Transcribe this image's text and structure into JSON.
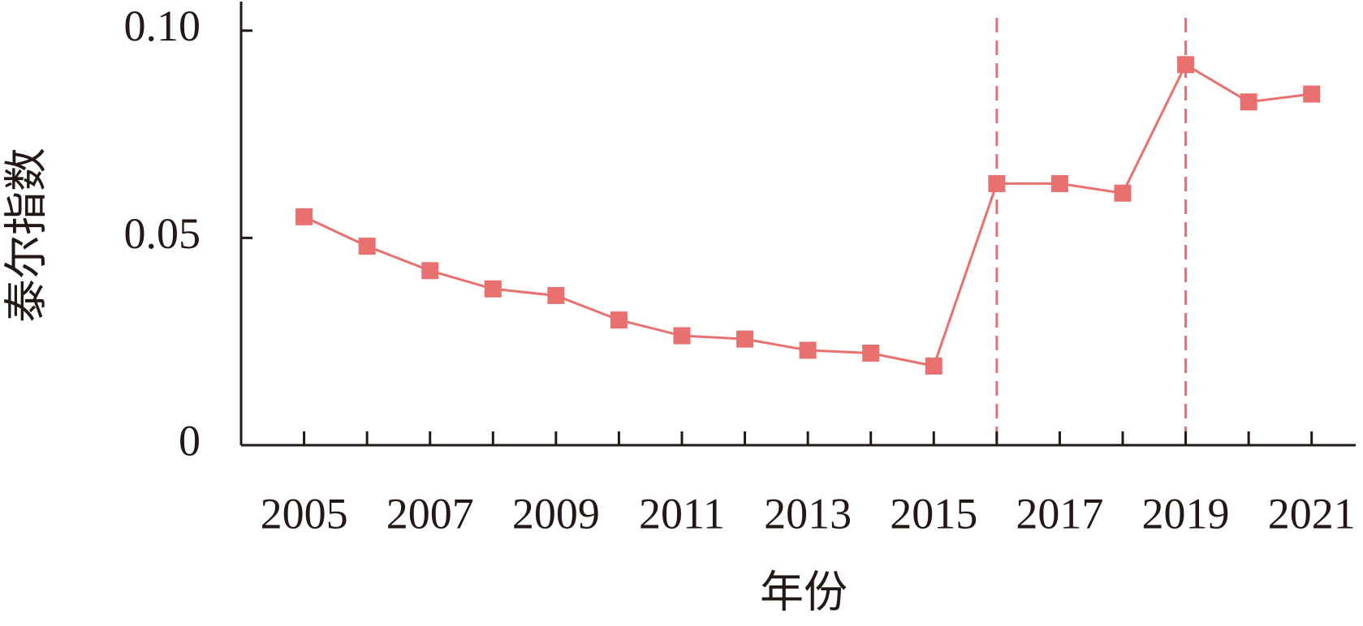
{
  "chart_data": {
    "type": "line",
    "x_label": "年份",
    "y_label": "泰尔指数",
    "x": [
      2005,
      2006,
      2007,
      2008,
      2009,
      2010,
      2011,
      2012,
      2013,
      2014,
      2015,
      2016,
      2017,
      2018,
      2019,
      2020,
      2021
    ],
    "series": [
      {
        "color": "#e8706f",
        "marker": "square",
        "values": [
          0.0551,
          0.048,
          0.0421,
          0.0377,
          0.0361,
          0.0302,
          0.0264,
          0.0256,
          0.0229,
          0.0222,
          0.0191,
          0.0631,
          0.0631,
          0.0608,
          0.0918,
          0.0828,
          0.0847
        ]
      }
    ],
    "xlim": [
      2004,
      2021.7
    ],
    "xticks": [
      2005,
      2007,
      2009,
      2011,
      2013,
      2015,
      2017,
      2019,
      2021
    ],
    "x_minor_ticks": [
      2006,
      2008,
      2010,
      2012,
      2014,
      2016,
      2018,
      2020
    ],
    "ylim": [
      0,
      0.107
    ],
    "yticks": [
      0,
      0.05,
      {
        "value": 0.1,
        "label": "0.10"
      }
    ],
    "reference_lines": {
      "x": [
        2016,
        2019
      ],
      "color": "#e8706f",
      "style": "dashed"
    }
  }
}
